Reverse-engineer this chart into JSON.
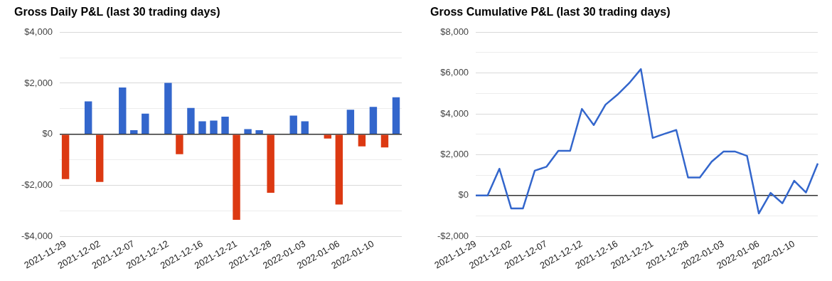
{
  "chart_data": [
    {
      "type": "bar",
      "title": "Gross Daily P&L (last 30 trading days)",
      "categories": [
        "2021-11-29",
        null,
        null,
        "2021-12-02",
        null,
        null,
        "2021-12-07",
        null,
        null,
        "2021-12-12",
        null,
        null,
        "2021-12-16",
        null,
        null,
        "2021-12-21",
        null,
        null,
        "2021-12-28",
        null,
        null,
        "2022-01-03",
        null,
        null,
        "2022-01-06",
        null,
        null,
        "2022-01-10",
        null,
        null
      ],
      "values": [
        -1760,
        0,
        1290,
        -1870,
        0,
        1830,
        160,
        810,
        0,
        2010,
        -780,
        1030,
        505,
        535,
        690,
        -3350,
        200,
        160,
        -2290,
        0,
        730,
        505,
        0,
        -170,
        -2750,
        960,
        -475,
        1070,
        -515,
        1445
      ],
      "colors": [
        "#dc3912",
        "#3366cc",
        "#3366cc",
        "#dc3912",
        "#3366cc",
        "#3366cc",
        "#3366cc",
        "#3366cc",
        "#3366cc",
        "#3366cc",
        "#dc3912",
        "#3366cc",
        "#3366cc",
        "#3366cc",
        "#3366cc",
        "#dc3912",
        "#3366cc",
        "#3366cc",
        "#dc3912",
        "#3366cc",
        "#3366cc",
        "#3366cc",
        "#3366cc",
        "#dc3912",
        "#dc3912",
        "#3366cc",
        "#dc3912",
        "#3366cc",
        "#dc3912",
        "#3366cc"
      ],
      "ylim": [
        -4000,
        4000
      ],
      "yticks": [
        {
          "value": -4000,
          "label": "-$4,000"
        },
        {
          "value": -3000,
          "label": null
        },
        {
          "value": -2000,
          "label": "-$2,000"
        },
        {
          "value": -1000,
          "label": null
        },
        {
          "value": 0,
          "label": "$0"
        },
        {
          "value": 1000,
          "label": null
        },
        {
          "value": 2000,
          "label": "$2,000"
        },
        {
          "value": 3000,
          "label": null
        },
        {
          "value": 4000,
          "label": "$4,000"
        }
      ],
      "grid": "y",
      "legend": false
    },
    {
      "type": "line",
      "title": "Gross Cumulative P&L (last 30 trading days)",
      "categories": [
        "2021-11-29",
        null,
        null,
        "2021-12-02",
        null,
        null,
        "2021-12-07",
        null,
        null,
        "2021-12-12",
        null,
        null,
        "2021-12-16",
        null,
        null,
        "2021-12-21",
        null,
        null,
        "2021-12-28",
        null,
        null,
        "2022-01-03",
        null,
        null,
        "2022-01-06",
        null,
        null,
        "2022-01-10",
        null,
        null
      ],
      "series": [
        {
          "color": "#3366cc",
          "values": [
            0,
            0,
            1310,
            -630,
            -630,
            1220,
            1410,
            2190,
            2190,
            4240,
            3450,
            4450,
            4930,
            5500,
            6190,
            2820,
            3020,
            3210,
            880,
            880,
            1660,
            2150,
            2150,
            1940,
            -880,
            130,
            -380,
            720,
            150,
            1570
          ]
        }
      ],
      "ylim": [
        -2000,
        8000
      ],
      "yticks": [
        {
          "value": -2000,
          "label": "-$2,000"
        },
        {
          "value": -1000,
          "label": null
        },
        {
          "value": 0,
          "label": "$0"
        },
        {
          "value": 1000,
          "label": null
        },
        {
          "value": 2000,
          "label": "$2,000"
        },
        {
          "value": 3000,
          "label": null
        },
        {
          "value": 4000,
          "label": "$4,000"
        },
        {
          "value": 5000,
          "label": null
        },
        {
          "value": 6000,
          "label": "$6,000"
        },
        {
          "value": 7000,
          "label": null
        },
        {
          "value": 8000,
          "label": "$8,000"
        }
      ],
      "grid": "y",
      "legend": false,
      "marker": "none"
    }
  ]
}
